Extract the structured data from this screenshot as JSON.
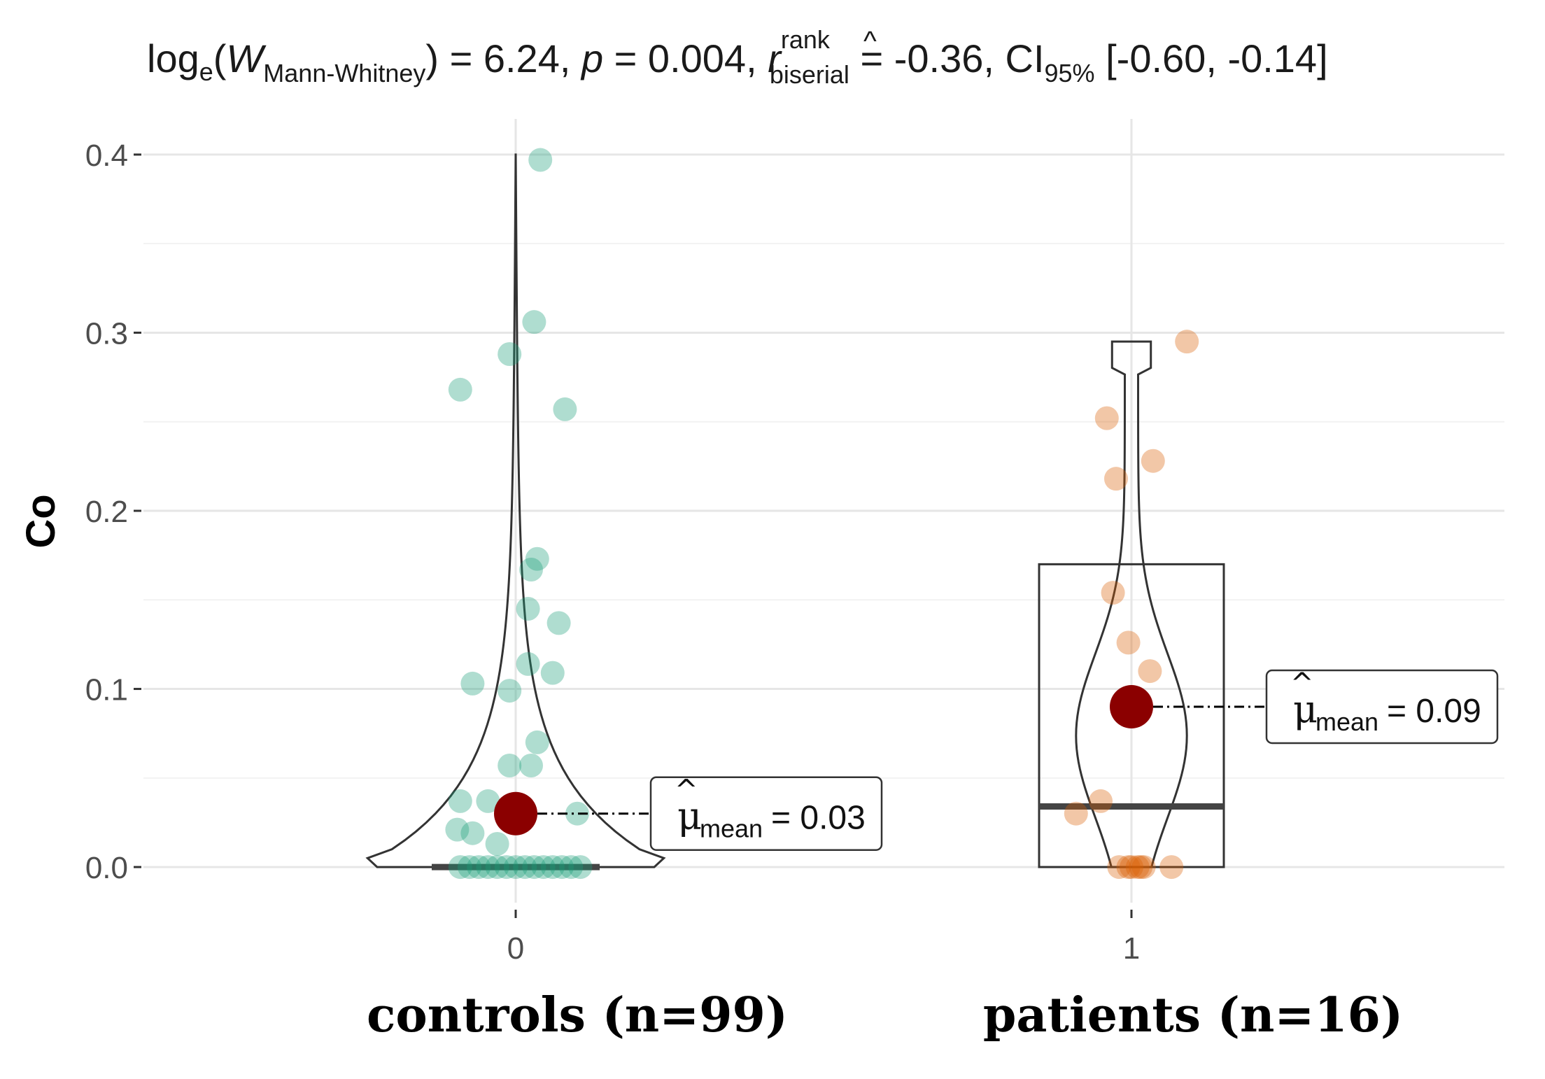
{
  "chart_data": {
    "type": "violin-box-scatter",
    "title": {
      "log_prefix": "log",
      "log_sub": "e",
      "w": "W",
      "w_sub": "Mann-Whitney",
      "w_val": ") = 6.24, ",
      "p": "p",
      "p_val": " = 0.004, ",
      "r": "r",
      "r_sup": "rank",
      "r_sub": "biserial",
      "r_val": " = -0.36, ",
      "ci": "CI",
      "ci_sub": "95%",
      "ci_val": " [-0.60, -0.14]"
    },
    "ylabel": "Co",
    "ylim": [
      -0.02,
      0.42
    ],
    "yticks": [
      0.0,
      0.1,
      0.2,
      0.3,
      0.4
    ],
    "ytick_labels": [
      "0.0",
      "0.1",
      "0.2",
      "0.3",
      "0.4"
    ],
    "grid": true,
    "groups": [
      {
        "tick": "0",
        "label": "controls (n=99)",
        "color": "#1b9e77",
        "mean": 0.03,
        "mean_label": "= 0.03",
        "mu": "μ",
        "mu_sub": "mean",
        "box": {
          "q1": 0.0,
          "median": 0.0,
          "q3": 0.0
        },
        "violin": {
          "ymin": 0.0,
          "ymax": 0.4,
          "max_halfwidth": 0.25
        },
        "points": [
          {
            "x": 0.04,
            "y": 0.397
          },
          {
            "x": 0.03,
            "y": 0.306
          },
          {
            "x": -0.01,
            "y": 0.288
          },
          {
            "x": -0.09,
            "y": 0.268
          },
          {
            "x": 0.08,
            "y": 0.257
          },
          {
            "x": 0.035,
            "y": 0.173
          },
          {
            "x": 0.025,
            "y": 0.167
          },
          {
            "x": 0.02,
            "y": 0.145
          },
          {
            "x": 0.07,
            "y": 0.137
          },
          {
            "x": 0.02,
            "y": 0.114
          },
          {
            "x": 0.06,
            "y": 0.109
          },
          {
            "x": -0.07,
            "y": 0.103
          },
          {
            "x": -0.01,
            "y": 0.099
          },
          {
            "x": 0.035,
            "y": 0.07
          },
          {
            "x": 0.025,
            "y": 0.057
          },
          {
            "x": -0.01,
            "y": 0.057
          },
          {
            "x": -0.09,
            "y": 0.037
          },
          {
            "x": -0.045,
            "y": 0.037
          },
          {
            "x": -0.095,
            "y": 0.021
          },
          {
            "x": -0.07,
            "y": 0.019
          },
          {
            "x": 0.1,
            "y": 0.03
          },
          {
            "x": -0.03,
            "y": 0.013
          },
          {
            "x": -0.09,
            "y": 0.0
          },
          {
            "x": -0.075,
            "y": 0.0
          },
          {
            "x": -0.06,
            "y": 0.0
          },
          {
            "x": -0.045,
            "y": 0.0
          },
          {
            "x": -0.03,
            "y": 0.0
          },
          {
            "x": -0.015,
            "y": 0.0
          },
          {
            "x": 0.0,
            "y": 0.0
          },
          {
            "x": 0.015,
            "y": 0.0
          },
          {
            "x": 0.03,
            "y": 0.0
          },
          {
            "x": 0.045,
            "y": 0.0
          },
          {
            "x": 0.06,
            "y": 0.0
          },
          {
            "x": 0.075,
            "y": 0.0
          },
          {
            "x": 0.09,
            "y": 0.0
          },
          {
            "x": 0.105,
            "y": 0.0
          }
        ]
      },
      {
        "tick": "1",
        "label": "patients (n=16)",
        "color": "#d95f02",
        "mean": 0.09,
        "mean_label": "= 0.09",
        "mu": "μ",
        "mu_sub": "mean",
        "box": {
          "q1": 0.0,
          "median": 0.034,
          "q3": 0.17
        },
        "violin": {
          "ymin": 0.0,
          "ymax": 0.295,
          "max_halfwidth": 0.09
        },
        "points": [
          {
            "x": 0.09,
            "y": 0.295
          },
          {
            "x": -0.04,
            "y": 0.252
          },
          {
            "x": 0.035,
            "y": 0.228
          },
          {
            "x": -0.025,
            "y": 0.218
          },
          {
            "x": -0.03,
            "y": 0.154
          },
          {
            "x": -0.005,
            "y": 0.126
          },
          {
            "x": 0.03,
            "y": 0.11
          },
          {
            "x": -0.05,
            "y": 0.037
          },
          {
            "x": -0.09,
            "y": 0.03
          },
          {
            "x": -0.02,
            "y": 0.0
          },
          {
            "x": 0.01,
            "y": 0.0
          },
          {
            "x": 0.02,
            "y": 0.0
          },
          {
            "x": 0.065,
            "y": 0.0
          },
          {
            "x": 0.0,
            "y": 0.0
          },
          {
            "x": 0.015,
            "y": 0.0
          },
          {
            "x": -0.005,
            "y": 0.0
          }
        ]
      }
    ],
    "mean_color": "#8b0000"
  }
}
